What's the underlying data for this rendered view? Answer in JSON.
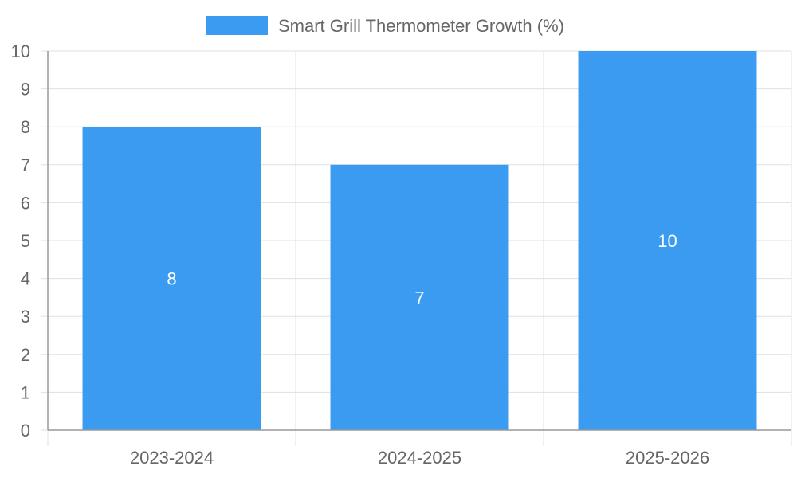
{
  "chart_data": {
    "type": "bar",
    "categories": [
      "2023-2024",
      "2024-2025",
      "2025-2026"
    ],
    "series": [
      {
        "name": "Smart Grill Thermometer Growth (%)",
        "values": [
          8,
          7,
          10
        ],
        "color": "#3a9bf0"
      }
    ],
    "ylim": [
      0,
      10
    ],
    "yticks": [
      "0",
      "1",
      "2",
      "3",
      "4",
      "5",
      "6",
      "7",
      "8",
      "9",
      "10"
    ],
    "data_labels": [
      "8",
      "7",
      "10"
    ],
    "grid": true,
    "legend_position": "top-center",
    "xlabel": "",
    "ylabel": ""
  },
  "colors": {
    "bar": "#3a9bf0",
    "grid": "#e0e0e0",
    "axis": "#999999",
    "tick_text": "#666666",
    "label_text": "#ffffff"
  }
}
